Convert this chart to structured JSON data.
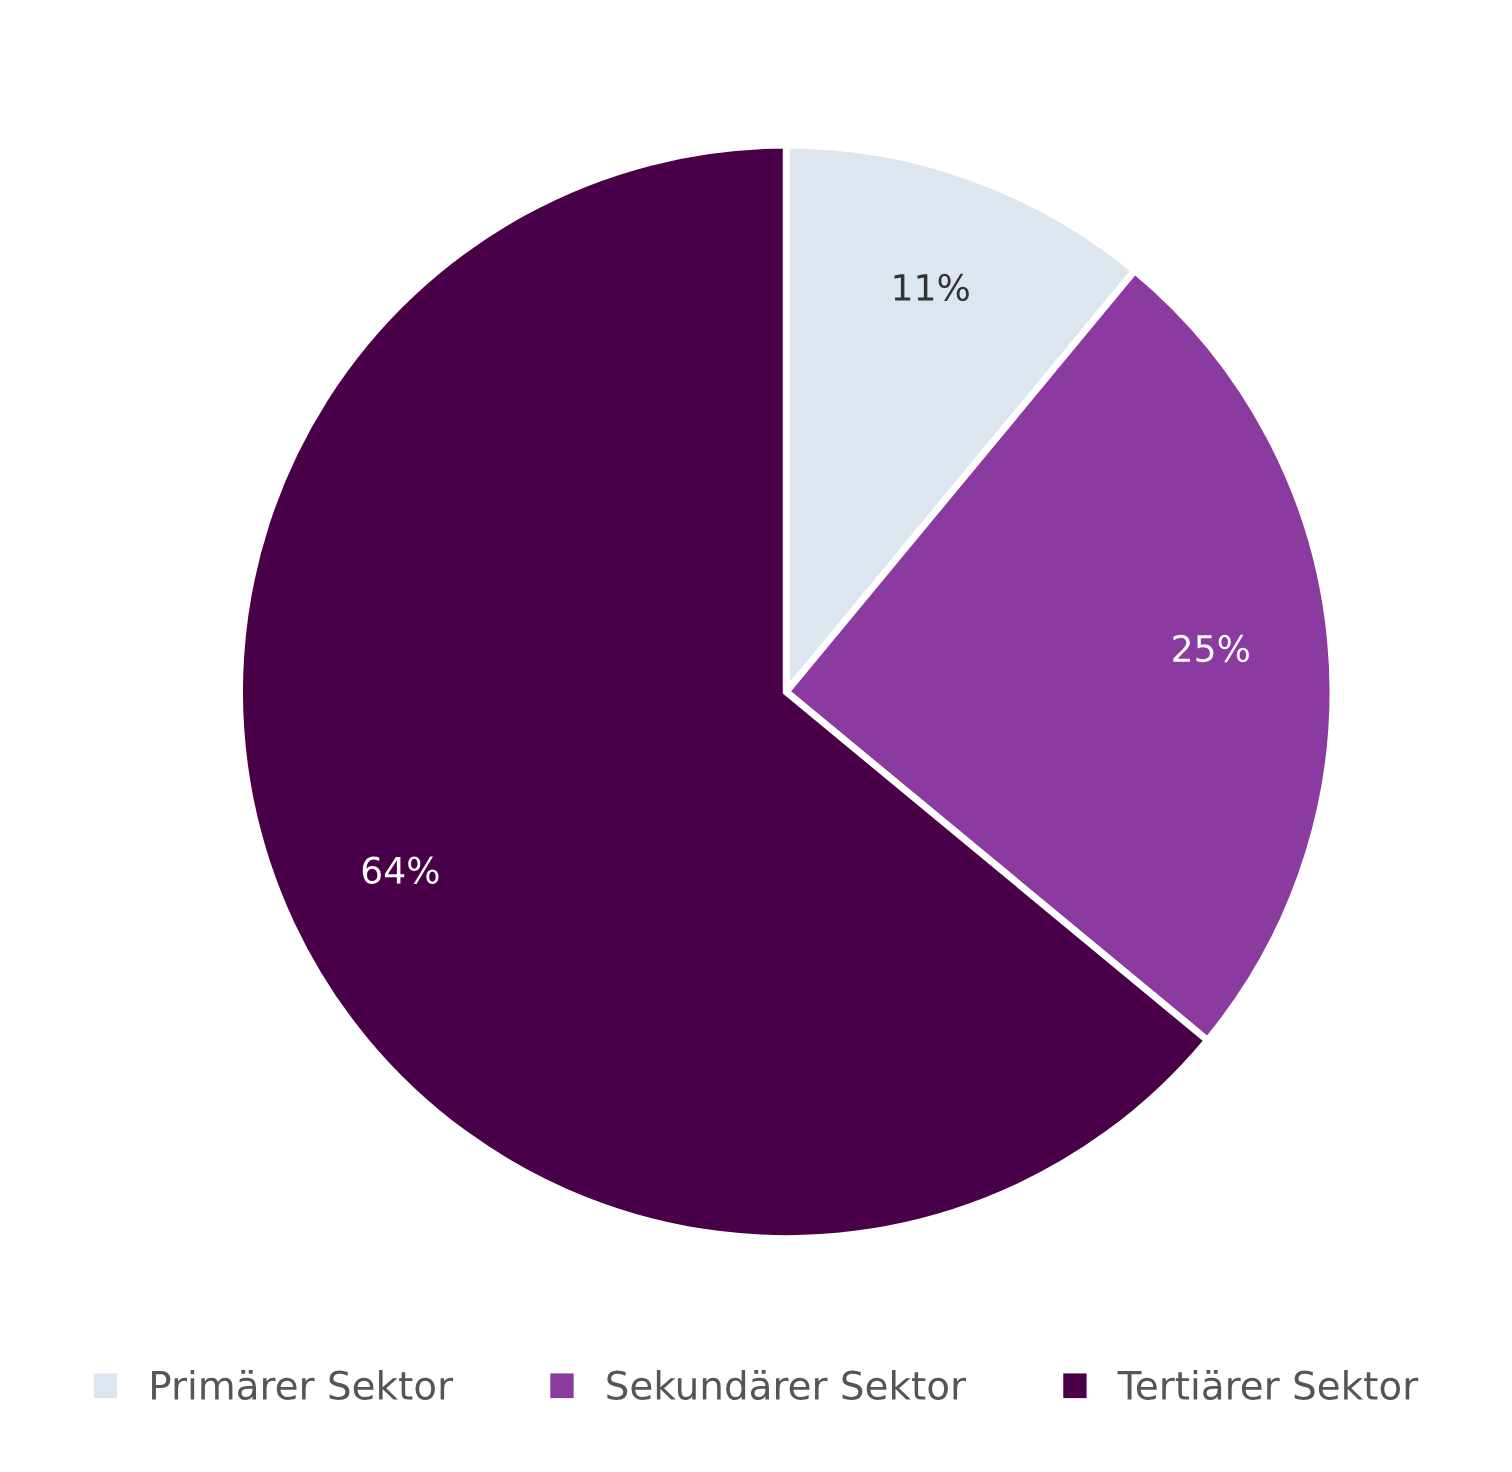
{
  "chart_data": {
    "type": "pie",
    "categories": [
      "Primärer Sektor",
      "Sekundärer Sektor",
      "Tertiärer Sektor"
    ],
    "values": [
      11,
      25,
      64
    ],
    "colors": [
      "#dde6ef",
      "#8b3a9f",
      "#4a0048"
    ],
    "value_labels": [
      "11%",
      "25%",
      "64%"
    ],
    "legend": "bottom"
  }
}
